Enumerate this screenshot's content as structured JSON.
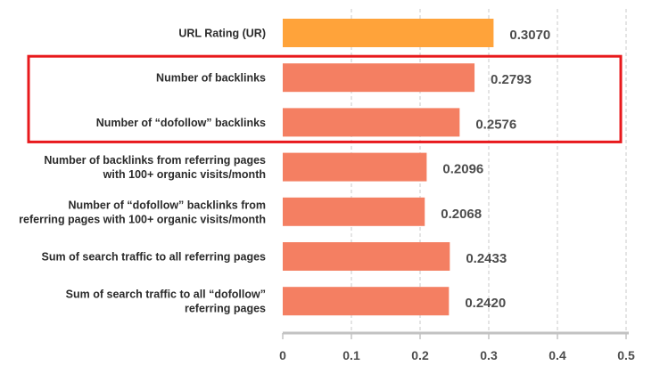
{
  "chart_data": {
    "type": "bar",
    "orientation": "horizontal",
    "categories": [
      [
        "URL Rating (UR)"
      ],
      [
        "Number of backlinks"
      ],
      [
        "Number of “dofollow” backlinks"
      ],
      [
        "Number of backlinks from referring pages",
        "with 100+ organic visits/month"
      ],
      [
        "Number of “dofollow” backlinks from",
        "referring pages with 100+ organic visits/month"
      ],
      [
        "Sum of search traffic to all referring pages"
      ],
      [
        "Sum of search traffic to all “dofollow”",
        "referring pages"
      ]
    ],
    "values": [
      0.307,
      0.2793,
      0.2576,
      0.2096,
      0.2068,
      0.2433,
      0.242
    ],
    "value_labels": [
      "0.3070",
      "0.2793",
      "0.2576",
      "0.2096",
      "0.2068",
      "0.2433",
      "0.2420"
    ],
    "bar_colors": [
      "#ffa33a",
      "#f47f62",
      "#f47f62",
      "#f47f62",
      "#f47f62",
      "#f47f62",
      "#f47f62"
    ],
    "xlim": [
      0,
      0.5
    ],
    "xticks": [
      0,
      0.1,
      0.2,
      0.3,
      0.4,
      0.5
    ],
    "xtick_labels": [
      "0",
      "0.1",
      "0.2",
      "0.3",
      "0.4",
      "0.5"
    ],
    "grid": "vertical dashed",
    "highlight_box": {
      "categories": [
        1,
        2
      ],
      "color": "#e8191c"
    },
    "colors": {
      "gridline": "#c9c9c9",
      "axis": "#c2c2c2",
      "text": "#2b2b2b",
      "values": "#4d4d4d"
    }
  }
}
